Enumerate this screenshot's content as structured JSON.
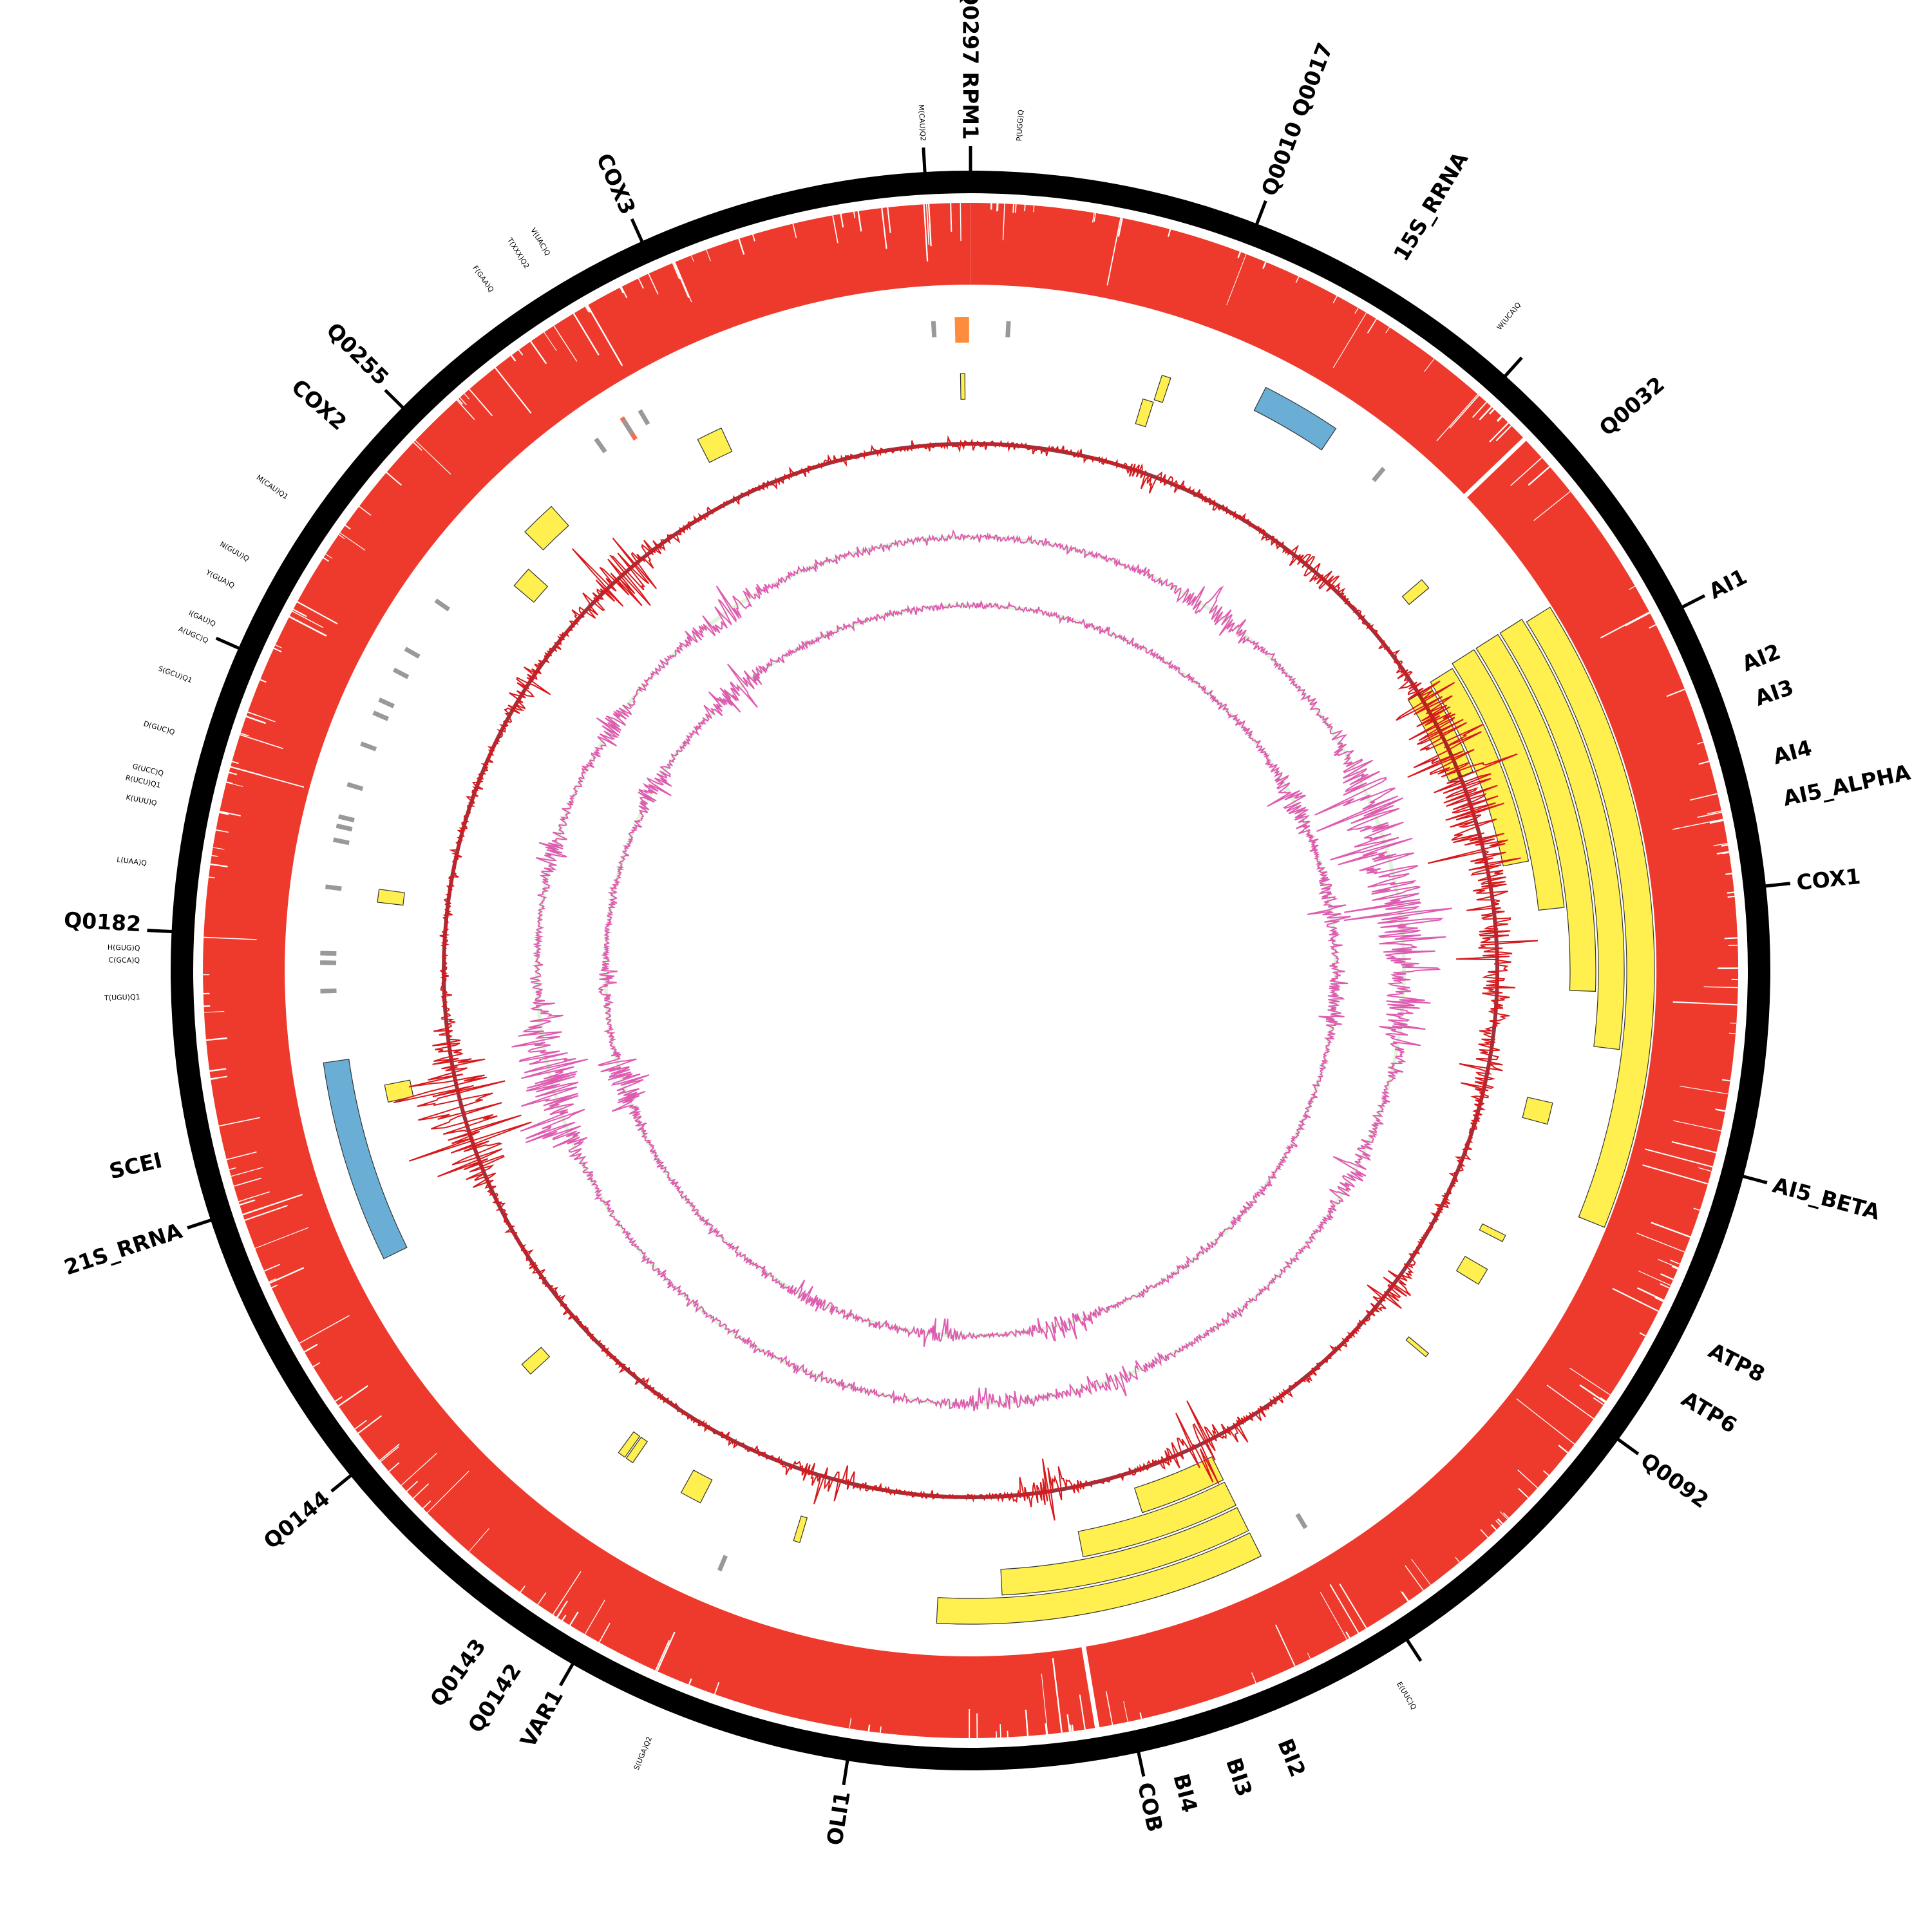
{
  "genome_unit": "kb",
  "colors": {
    "ring": "#000000",
    "coverage": "#ee3a2c",
    "intron": "#fff050",
    "rrna": "#6aaed6",
    "orf_orange": "#fd8d3c",
    "red_feature": "#fb6a4a",
    "trna": "#999999",
    "line_red": "#d7191c",
    "line_red_fill": "#800010",
    "line_pink": "#de5bb0",
    "line_pink_fill": "#d7f5d0"
  },
  "scale_ticks_kb": [
    0,
    5,
    10,
    15,
    20,
    25,
    30,
    35,
    40,
    45,
    50,
    55,
    60,
    65,
    70,
    75,
    80,
    85
  ],
  "gene_labels": [
    {
      "text": "Q0297 RPM1",
      "pos": 0.0
    },
    {
      "text": "Q0010 Q0017",
      "pos": 5.0
    },
    {
      "text": "15S_RRNA",
      "pos": 7.4
    },
    {
      "text": "Q0032",
      "pos": 11.8
    },
    {
      "text": "AI1",
      "pos": 15.0
    },
    {
      "text": "AI2",
      "pos": 16.3
    },
    {
      "text": "AI3",
      "pos": 16.9
    },
    {
      "text": "AI4",
      "pos": 17.9
    },
    {
      "text": "AI5_ALPHA",
      "pos": 18.6
    },
    {
      "text": "COX1",
      "pos": 20.0
    },
    {
      "text": "AI5_BETA",
      "pos": 25.0
    },
    {
      "text": "ATP8",
      "pos": 27.9
    },
    {
      "text": "ATP6",
      "pos": 28.8
    },
    {
      "text": "Q0092",
      "pos": 30.0
    },
    {
      "text": "BI2",
      "pos": 37.6
    },
    {
      "text": "BI3",
      "pos": 38.5
    },
    {
      "text": "BI4",
      "pos": 39.4
    },
    {
      "text": "COB",
      "pos": 40.0
    },
    {
      "text": "OLI1",
      "pos": 45.0
    },
    {
      "text": "VAR1",
      "pos": 50.0
    },
    {
      "text": "Q0142",
      "pos": 50.8
    },
    {
      "text": "Q0143",
      "pos": 51.5
    },
    {
      "text": "Q0144",
      "pos": 55.0
    },
    {
      "text": "21S_RRNA",
      "pos": 60.0
    },
    {
      "text": "SCEI",
      "pos": 61.2
    },
    {
      "text": "Q0182",
      "pos": 65.1
    },
    {
      "text": "COX2",
      "pos": 74.1
    },
    {
      "text": "Q0255",
      "pos": 75.1
    },
    {
      "text": "COX3",
      "pos": 80.0
    }
  ],
  "trna_labels": [
    {
      "text": "M(CAU)Q2",
      "pos": 85.0
    },
    {
      "text": "P(UGG)Q",
      "pos": 0.8
    },
    {
      "text": "W(UCA)Q",
      "pos": 9.4
    },
    {
      "text": "E(UUC)Q",
      "pos": 35.5
    },
    {
      "text": "S(UGA)Q2",
      "pos": 48.3
    },
    {
      "text": "T(UGU)Q1",
      "pos": 63.9
    },
    {
      "text": "C(GCA)Q",
      "pos": 64.5
    },
    {
      "text": "H(GUG)Q",
      "pos": 64.7
    },
    {
      "text": "L(UAA)Q",
      "pos": 66.1
    },
    {
      "text": "K(UUU)Q",
      "pos": 67.1
    },
    {
      "text": "R(UCU)Q1",
      "pos": 67.4
    },
    {
      "text": "G(UCC)Q",
      "pos": 67.6
    },
    {
      "text": "D(GUC)Q",
      "pos": 68.3
    },
    {
      "text": "S(GCU)Q1",
      "pos": 69.2
    },
    {
      "text": "A(UGC)Q",
      "pos": 69.9
    },
    {
      "text": "I(GAU)Q",
      "pos": 70.2
    },
    {
      "text": "Y(GUA)Q",
      "pos": 70.9
    },
    {
      "text": "N(GUU)Q",
      "pos": 71.4
    },
    {
      "text": "M(CAU)Q1",
      "pos": 72.6
    },
    {
      "text": "F(GAA)Q",
      "pos": 77.4
    },
    {
      "text": "T(XXX)Q2",
      "pos": 78.1
    },
    {
      "text": "V(UAC)Q",
      "pos": 78.5
    }
  ],
  "features": [
    {
      "type": "intron",
      "start": 13.8,
      "end": 26.7,
      "lane": 0
    },
    {
      "type": "intron",
      "start": 13.7,
      "end": 23.1,
      "lane": 1
    },
    {
      "type": "intron",
      "start": 13.7,
      "end": 21.9,
      "lane": 2
    },
    {
      "type": "intron",
      "start": 13.7,
      "end": 20.0,
      "lane": 3
    },
    {
      "type": "intron",
      "start": 13.8,
      "end": 18.8,
      "lane": 4
    },
    {
      "type": "intron",
      "start": 13.9,
      "end": 16.3,
      "lane": 5
    },
    {
      "type": "intron",
      "start": 36.6,
      "end": 43.6,
      "lane": 1
    },
    {
      "type": "intron",
      "start": 36.6,
      "end": 42.2,
      "lane": 2
    },
    {
      "type": "intron",
      "start": 36.6,
      "end": 40.3,
      "lane": 3
    },
    {
      "type": "intron",
      "start": 36.6,
      "end": 38.7,
      "lane": 4
    },
    {
      "type": "rrna",
      "start": 6.4,
      "end": 8.1,
      "lane": 1
    },
    {
      "type": "rrna",
      "start": 58.1,
      "end": 62.4,
      "lane": 1
    },
    {
      "type": "orf_orange",
      "start": 85.45,
      "end": 85.75,
      "lane": 1
    },
    {
      "type": "red_feature",
      "start": 78.05,
      "end": 78.15,
      "lane": 1
    },
    {
      "type": "intron",
      "start": 85.55,
      "end": 85.65,
      "lane": 3
    },
    {
      "type": "intron",
      "start": 4.25,
      "end": 4.45,
      "lane": 2
    },
    {
      "type": "intron",
      "start": 4.0,
      "end": 4.25,
      "lane": 3
    },
    {
      "type": "intron",
      "start": 79.3,
      "end": 79.9,
      "lane": 3
    },
    {
      "type": "intron",
      "start": 74.95,
      "end": 75.75,
      "lane": 2
    },
    {
      "type": "intron",
      "start": 73.9,
      "end": 74.4,
      "lane": 3
    },
    {
      "type": "intron",
      "start": 65.9,
      "end": 66.2,
      "lane": 3
    },
    {
      "type": "intron",
      "start": 61.3,
      "end": 61.7,
      "lane": 3
    },
    {
      "type": "intron",
      "start": 11.7,
      "end": 11.95,
      "lane": 3
    },
    {
      "type": "intron",
      "start": 24.5,
      "end": 25.0,
      "lane": 3
    },
    {
      "type": "intron",
      "start": 27.72,
      "end": 27.88,
      "lane": 3
    },
    {
      "type": "intron",
      "start": 28.6,
      "end": 29.0,
      "lane": 3
    },
    {
      "type": "intron",
      "start": 30.95,
      "end": 31.05,
      "lane": 3
    },
    {
      "type": "intron",
      "start": 54.2,
      "end": 54.5,
      "lane": 3
    },
    {
      "type": "intron",
      "start": 51.1,
      "end": 51.28,
      "lane": 3
    },
    {
      "type": "intron",
      "start": 51.32,
      "end": 51.5,
      "lane": 3
    },
    {
      "type": "intron",
      "start": 49.3,
      "end": 49.8,
      "lane": 3
    },
    {
      "type": "intron",
      "start": 46.85,
      "end": 47.0,
      "lane": 3
    }
  ]
}
